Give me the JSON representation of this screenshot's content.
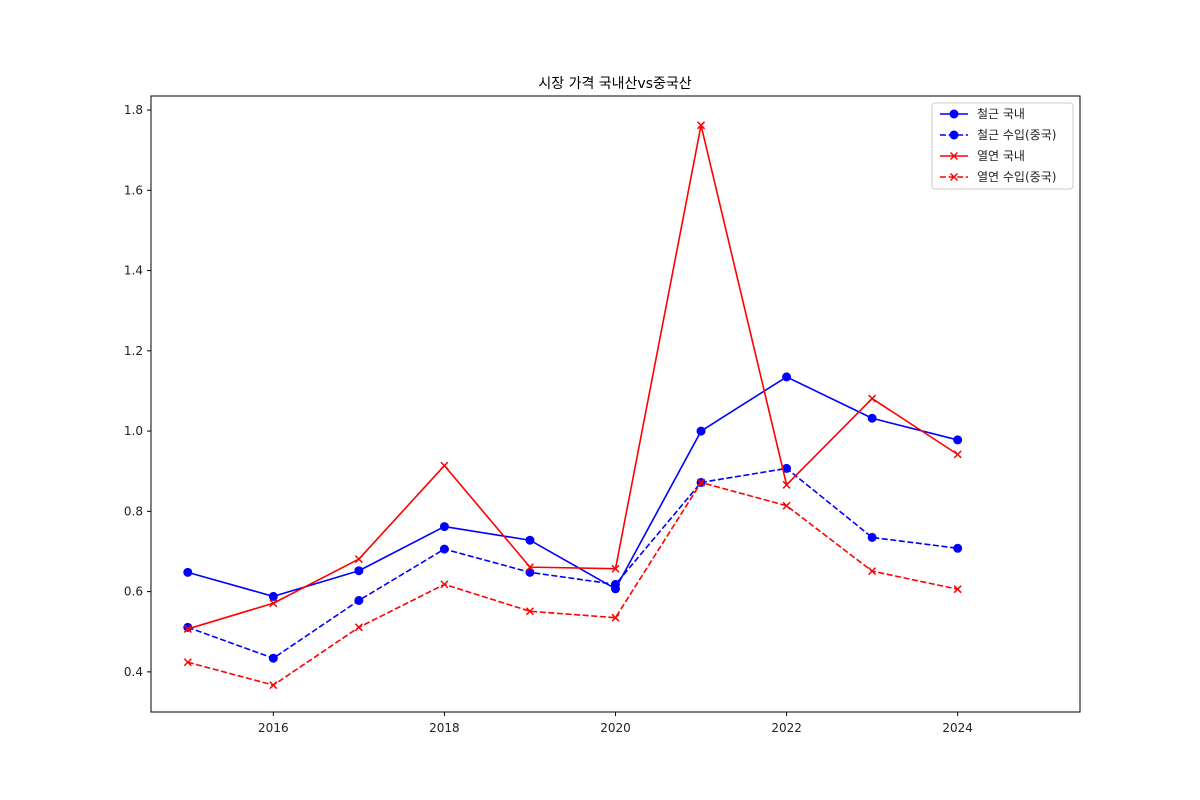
{
  "chart_data": {
    "type": "line",
    "title": "시장 가격 국내산vs중국산",
    "xlabel": "",
    "ylabel": "",
    "x": [
      2015,
      2016,
      2017,
      2018,
      2019,
      2020,
      2021,
      2022,
      2023,
      2024
    ],
    "xlim": [
      2014.57,
      2025.43
    ],
    "ylim": [
      0.3,
      1.835
    ],
    "xticks": [
      2016,
      2018,
      2020,
      2022,
      2024
    ],
    "xtick_labels": [
      "2016",
      "2018",
      "2020",
      "2022",
      "2024"
    ],
    "yticks": [
      0.4,
      0.6,
      0.8,
      1.0,
      1.2,
      1.4,
      1.6,
      1.8
    ],
    "ytick_labels": [
      "0.4",
      "0.6",
      "0.8",
      "1.0",
      "1.2",
      "1.4",
      "1.6",
      "1.8"
    ],
    "grid": false,
    "legend_position": "top-right",
    "series": [
      {
        "name": "철근 국내",
        "color": "#0000ff",
        "dash": "solid",
        "marker": "circle",
        "values": [
          0.648,
          0.588,
          0.652,
          0.762,
          0.728,
          0.607,
          1.0,
          1.135,
          1.032,
          0.978
        ]
      },
      {
        "name": "철근 수입(중국)",
        "color": "#0000ff",
        "dash": "dashed",
        "marker": "circle",
        "values": [
          0.511,
          0.434,
          0.578,
          0.706,
          0.648,
          0.618,
          0.872,
          0.907,
          0.735,
          0.708
        ]
      },
      {
        "name": "열연 국내",
        "color": "#ff0000",
        "dash": "solid",
        "marker": "x",
        "values": [
          0.507,
          0.571,
          0.681,
          0.914,
          0.661,
          0.657,
          1.762,
          0.866,
          1.081,
          0.942
        ]
      },
      {
        "name": "열연 수입(중국)",
        "color": "#ff0000",
        "dash": "dashed",
        "marker": "x",
        "values": [
          0.424,
          0.367,
          0.511,
          0.618,
          0.551,
          0.535,
          0.872,
          0.814,
          0.651,
          0.606
        ]
      }
    ]
  }
}
